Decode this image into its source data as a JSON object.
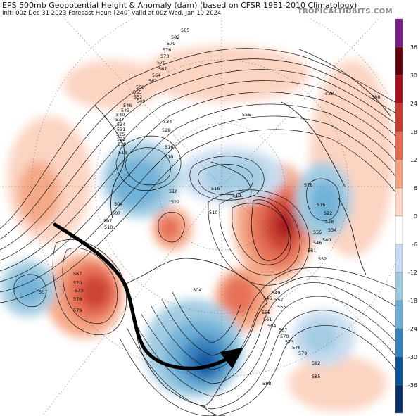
{
  "header": {
    "title": "EPS 500mb Geopotential Height & Anomaly (dam) (based on CFSR 1981-2010 Climatology)",
    "subtitle": "Init: 00z Dec 31 2023   Forecast Hour: [240]   valid at 00z Wed, Jan 10 2024",
    "brand": "TROPICALTIDBITS.COM"
  },
  "colorbar": {
    "labels": [
      "36",
      "30",
      "24",
      "18",
      "12",
      "6",
      "0",
      "-6",
      "-12",
      "-18",
      "-24",
      "-30",
      "-36"
    ],
    "colors": [
      "#7b1a8a",
      "#67000d",
      "#a50f15",
      "#cb3b2b",
      "#e66a4f",
      "#f3a07e",
      "#fbd2bf",
      "#ffffff",
      "#c6dbef",
      "#9ecae1",
      "#6baed6",
      "#3182bd",
      "#08519c",
      "#08306b"
    ]
  },
  "map": {
    "height_contour_labels": [
      "585",
      "582",
      "579",
      "576",
      "573",
      "570",
      "567",
      "564",
      "561",
      "558",
      "555",
      "552",
      "549",
      "546",
      "543",
      "540",
      "537",
      "534",
      "531",
      "528",
      "525",
      "522",
      "519",
      "516",
      "513",
      "510",
      "507",
      "504",
      "588",
      "516",
      "522",
      "510",
      "507",
      "510",
      "504",
      "567",
      "570",
      "573",
      "576",
      "579",
      "549",
      "552",
      "555",
      "558",
      "561",
      "564",
      "567",
      "570",
      "573",
      "576",
      "579",
      "582",
      "585",
      "588",
      "546",
      "555",
      "561",
      "588",
      "534",
      "528",
      "516",
      "510",
      "507",
      "516",
      "522",
      "528",
      "534",
      "540",
      "546",
      "552",
      "555"
    ],
    "anomaly_centers": [
      {
        "sign": "positive",
        "anomaly_dam": 24,
        "region": "Greenland / Labrador Sea"
      },
      {
        "sign": "positive",
        "anomaly_dam": 18,
        "region": "Gulf of Alaska"
      },
      {
        "sign": "positive",
        "anomaly_dam": 12,
        "region": "Alaska North Slope"
      },
      {
        "sign": "positive",
        "anomaly_dam": 12,
        "region": "Northeast North America"
      },
      {
        "sign": "negative",
        "anomaly_dam": -24,
        "region": "Central United States"
      },
      {
        "sign": "negative",
        "anomaly_dam": -18,
        "region": "Northern Europe"
      },
      {
        "sign": "negative",
        "anomaly_dam": -12,
        "region": "Western Siberia"
      },
      {
        "sign": "negative",
        "anomaly_dam": -12,
        "region": "Central North Pacific"
      },
      {
        "sign": "negative",
        "anomaly_dam": -12,
        "region": "Central North Atlantic"
      }
    ],
    "annotation_arrow": "jet stream path"
  }
}
